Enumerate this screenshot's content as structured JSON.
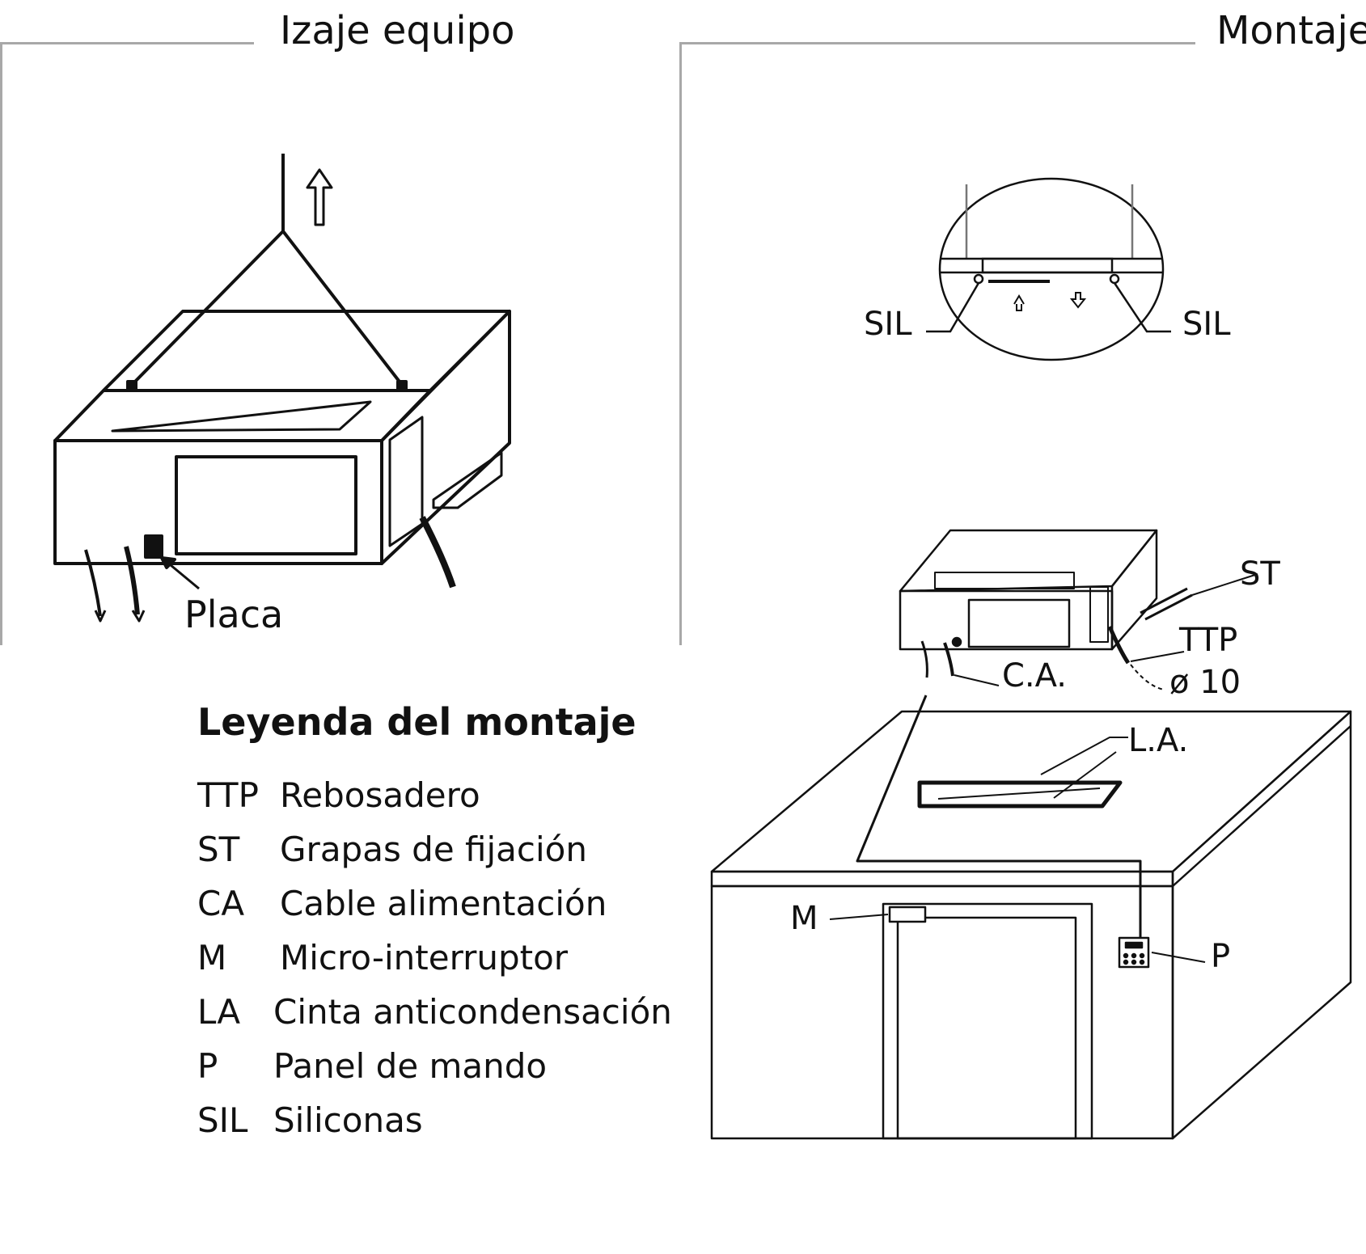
{
  "sections": {
    "lifting_title": "Izaje equipo",
    "mounting_title": "Montaje"
  },
  "lifting_diagram": {
    "plate_label": "Placa"
  },
  "mounting_diagram": {
    "sil_left": "SIL",
    "sil_right": "SIL",
    "st": "ST",
    "ttp": "TTP",
    "diameter": "ø 10",
    "ca": "C.A.",
    "la": "L.A.",
    "m": "M",
    "p": "P"
  },
  "legend": {
    "title": "Leyenda del montaje",
    "items": [
      {
        "code": "TTP",
        "desc": "Rebosadero"
      },
      {
        "code": "ST",
        "desc": "Grapas de fijación"
      },
      {
        "code": "CA",
        "desc": "Cable alimentación"
      },
      {
        "code": "M",
        "desc": "Micro-interruptor"
      },
      {
        "code": "LA",
        "desc": "Cinta anticondensación"
      },
      {
        "code": "P",
        "desc": "Panel de mando"
      },
      {
        "code": "SIL",
        "desc": "Siliconas"
      }
    ]
  }
}
